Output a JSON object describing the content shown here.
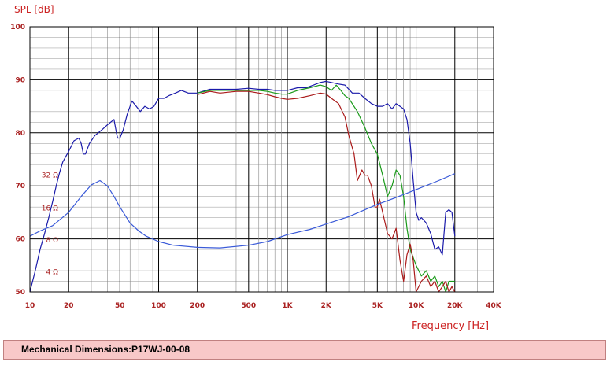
{
  "chart_data": {
    "type": "line",
    "ylabel": "SPL [dB]",
    "xlabel": "Frequency  [Hz]",
    "x_scale": "log",
    "xlim": [
      10,
      40000
    ],
    "ylim": [
      50,
      100
    ],
    "grid": true,
    "x_ticks": [
      {
        "v": 10,
        "label": "10"
      },
      {
        "v": 20,
        "label": "20"
      },
      {
        "v": 50,
        "label": "50"
      },
      {
        "v": 100,
        "label": "100"
      },
      {
        "v": 200,
        "label": "200"
      },
      {
        "v": 500,
        "label": "500"
      },
      {
        "v": 1000,
        "label": "1K"
      },
      {
        "v": 2000,
        "label": "2K"
      },
      {
        "v": 5000,
        "label": "5K"
      },
      {
        "v": 10000,
        "label": "10K"
      },
      {
        "v": 20000,
        "label": "20K"
      },
      {
        "v": 40000,
        "label": "40K"
      }
    ],
    "y_ticks": [
      50,
      60,
      70,
      80,
      90,
      100
    ],
    "impedance_labels": [
      {
        "text": "32 Ω",
        "y": 72
      },
      {
        "text": "16 Ω",
        "y": 65.8
      },
      {
        "text": "8 Ω",
        "y": 59.8
      },
      {
        "text": "4 Ω",
        "y": 53.8
      }
    ],
    "series": [
      {
        "color": "#1a1aaa",
        "points": [
          [
            10,
            50
          ],
          [
            11,
            54
          ],
          [
            12,
            58
          ],
          [
            13,
            61
          ],
          [
            14,
            64
          ],
          [
            15,
            67
          ],
          [
            16,
            70
          ],
          [
            17,
            72.5
          ],
          [
            18,
            74.5
          ],
          [
            20,
            76.5
          ],
          [
            22,
            78.5
          ],
          [
            24,
            79
          ],
          [
            25,
            78
          ],
          [
            26,
            76
          ],
          [
            27,
            76
          ],
          [
            29,
            78
          ],
          [
            32,
            79.5
          ],
          [
            36,
            80.5
          ],
          [
            40,
            81.5
          ],
          [
            45,
            82.5
          ],
          [
            47,
            80
          ],
          [
            48,
            79
          ],
          [
            50,
            79
          ],
          [
            53,
            80.5
          ],
          [
            57,
            83.5
          ],
          [
            62,
            86
          ],
          [
            67,
            85
          ],
          [
            72,
            84
          ],
          [
            78,
            85
          ],
          [
            85,
            84.5
          ],
          [
            92,
            85
          ],
          [
            100,
            86.5
          ],
          [
            110,
            86.5
          ],
          [
            120,
            87
          ],
          [
            135,
            87.5
          ],
          [
            150,
            88
          ],
          [
            170,
            87.5
          ],
          [
            200,
            87.5
          ],
          [
            250,
            88.2
          ],
          [
            300,
            88.2
          ],
          [
            400,
            88.2
          ],
          [
            500,
            88.4
          ],
          [
            600,
            88.2
          ],
          [
            700,
            88.2
          ],
          [
            800,
            88
          ],
          [
            900,
            88
          ],
          [
            1000,
            88
          ],
          [
            1200,
            88.5
          ],
          [
            1400,
            88.5
          ],
          [
            1600,
            89
          ],
          [
            1800,
            89.5
          ],
          [
            2000,
            89.7
          ],
          [
            2200,
            89.5
          ],
          [
            2500,
            89.2
          ],
          [
            2800,
            89
          ],
          [
            3200,
            87.5
          ],
          [
            3600,
            87.5
          ],
          [
            4000,
            86.5
          ],
          [
            4500,
            85.5
          ],
          [
            5000,
            85
          ],
          [
            5500,
            85
          ],
          [
            6000,
            85.5
          ],
          [
            6500,
            84.5
          ],
          [
            7000,
            85.5
          ],
          [
            7500,
            85
          ],
          [
            8000,
            84.5
          ],
          [
            8500,
            82.5
          ],
          [
            9000,
            78
          ],
          [
            9500,
            71
          ],
          [
            10000,
            65
          ],
          [
            10500,
            63.5
          ],
          [
            11000,
            64
          ],
          [
            12000,
            63
          ],
          [
            13000,
            61
          ],
          [
            14000,
            58
          ],
          [
            15000,
            58.5
          ],
          [
            16000,
            57
          ],
          [
            17000,
            65
          ],
          [
            18000,
            65.5
          ],
          [
            19000,
            65
          ],
          [
            20000,
            60.5
          ]
        ]
      },
      {
        "color": "#1a9a1a",
        "points": [
          [
            200,
            87.5
          ],
          [
            250,
            88
          ],
          [
            300,
            88
          ],
          [
            400,
            88
          ],
          [
            500,
            88
          ],
          [
            600,
            88
          ],
          [
            700,
            87.8
          ],
          [
            800,
            87.5
          ],
          [
            900,
            87.3
          ],
          [
            1000,
            87.3
          ],
          [
            1200,
            88
          ],
          [
            1500,
            88.5
          ],
          [
            1800,
            89
          ],
          [
            2000,
            88.7
          ],
          [
            2200,
            88
          ],
          [
            2400,
            89
          ],
          [
            2600,
            88
          ],
          [
            2800,
            87
          ],
          [
            3000,
            86.5
          ],
          [
            3500,
            84
          ],
          [
            4000,
            81
          ],
          [
            4500,
            78
          ],
          [
            5000,
            76
          ],
          [
            5500,
            72
          ],
          [
            6000,
            68
          ],
          [
            6500,
            70
          ],
          [
            7000,
            73
          ],
          [
            7500,
            72
          ],
          [
            8000,
            68
          ],
          [
            8500,
            62
          ],
          [
            9000,
            58
          ],
          [
            10000,
            55
          ],
          [
            11000,
            53
          ],
          [
            12000,
            54
          ],
          [
            13000,
            52
          ],
          [
            14000,
            53
          ],
          [
            15000,
            51
          ],
          [
            16000,
            52
          ],
          [
            17000,
            50
          ],
          [
            18000,
            52
          ],
          [
            20000,
            52
          ]
        ]
      },
      {
        "color": "#aa1a1a",
        "points": [
          [
            200,
            87.2
          ],
          [
            250,
            87.8
          ],
          [
            300,
            87.5
          ],
          [
            400,
            87.8
          ],
          [
            500,
            87.8
          ],
          [
            600,
            87.5
          ],
          [
            700,
            87.2
          ],
          [
            800,
            86.8
          ],
          [
            900,
            86.5
          ],
          [
            1000,
            86.3
          ],
          [
            1200,
            86.5
          ],
          [
            1500,
            87
          ],
          [
            1800,
            87.5
          ],
          [
            2000,
            87.3
          ],
          [
            2200,
            86.5
          ],
          [
            2500,
            85.5
          ],
          [
            2800,
            83
          ],
          [
            3000,
            79.5
          ],
          [
            3300,
            76
          ],
          [
            3500,
            71
          ],
          [
            3800,
            73
          ],
          [
            4000,
            72
          ],
          [
            4200,
            72
          ],
          [
            4500,
            70
          ],
          [
            4800,
            66
          ],
          [
            5000,
            66
          ],
          [
            5200,
            67.5
          ],
          [
            5500,
            65
          ],
          [
            6000,
            61
          ],
          [
            6500,
            60
          ],
          [
            7000,
            62
          ],
          [
            7500,
            56
          ],
          [
            8000,
            52
          ],
          [
            8500,
            57
          ],
          [
            9000,
            59
          ],
          [
            9500,
            56
          ],
          [
            10000,
            50
          ],
          [
            11000,
            52
          ],
          [
            12000,
            53
          ],
          [
            13000,
            51
          ],
          [
            14000,
            52
          ],
          [
            15000,
            50
          ],
          [
            16000,
            51
          ],
          [
            17000,
            52
          ],
          [
            18000,
            50
          ],
          [
            19000,
            51
          ],
          [
            20000,
            50
          ]
        ]
      },
      {
        "color": "#3a5ad8",
        "points": [
          [
            10,
            60.5
          ],
          [
            12,
            61.5
          ],
          [
            15,
            62.5
          ],
          [
            20,
            65
          ],
          [
            25,
            68
          ],
          [
            30,
            70.2
          ],
          [
            35,
            71
          ],
          [
            40,
            70
          ],
          [
            45,
            68
          ],
          [
            50,
            66
          ],
          [
            60,
            63
          ],
          [
            70,
            61.5
          ],
          [
            80,
            60.5
          ],
          [
            100,
            59.5
          ],
          [
            130,
            58.8
          ],
          [
            200,
            58.4
          ],
          [
            300,
            58.3
          ],
          [
            500,
            58.8
          ],
          [
            700,
            59.5
          ],
          [
            1000,
            60.8
          ],
          [
            1500,
            61.8
          ],
          [
            2000,
            62.8
          ],
          [
            3000,
            64.2
          ],
          [
            5000,
            66.5
          ],
          [
            7000,
            67.8
          ],
          [
            10000,
            69.3
          ],
          [
            15000,
            71
          ],
          [
            20000,
            72.3
          ]
        ]
      }
    ]
  },
  "caption": "Mechanical Dimensions:P17WJ-00-08"
}
